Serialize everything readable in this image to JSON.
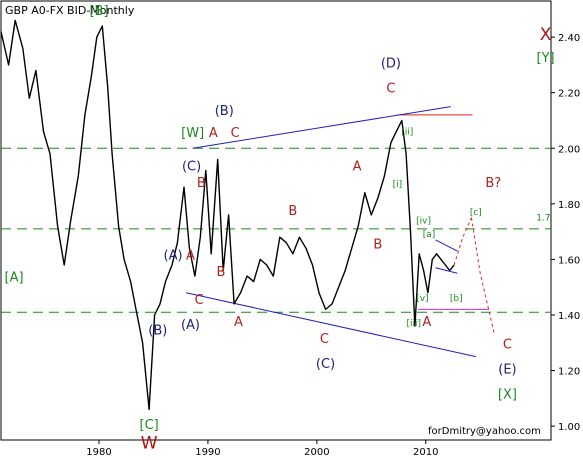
{
  "chart_data": {
    "type": "line",
    "title": "GBP A0-FX BID-Monthly",
    "watermark": "forDmitry@yahoo.com",
    "x_ticks": [
      1980,
      1990,
      2000,
      2010
    ],
    "y_ticks": [
      "1.00",
      "1.20",
      "1.40",
      "1.60",
      "1.80",
      "2.00",
      "2.20",
      "2.40"
    ],
    "xlim": [
      1971,
      2021.5
    ],
    "ylim": [
      0.95,
      2.53
    ],
    "grid": false,
    "series": [
      {
        "x": [
          1971.0,
          1971.7,
          1972.3,
          1973.0,
          1973.6,
          1974.2,
          1974.9,
          1975.5,
          1976.2,
          1976.8,
          1977.4,
          1978.1,
          1978.7,
          1979.3,
          1979.8,
          1980.3,
          1980.8,
          1981.2,
          1981.8,
          1982.3,
          1982.9,
          1983.4,
          1984.0,
          1984.6,
          1985.1,
          1985.6,
          1986.1,
          1986.7,
          1987.2,
          1987.8,
          1988.3,
          1988.8,
          1989.3,
          1989.8,
          1990.3,
          1990.9,
          1991.4,
          1991.9,
          1992.4,
          1993.0,
          1993.6,
          1994.2,
          1994.8,
          1995.4,
          1996.0,
          1996.6,
          1997.2,
          1997.8,
          1998.4,
          1999.0,
          1999.6,
          2000.2,
          2000.8,
          2001.4,
          2002.0,
          2002.6,
          2003.2,
          2003.8,
          2004.4,
          2005.0,
          2005.6,
          2006.2,
          2006.8,
          2007.3,
          2007.8,
          2008.2,
          2008.6,
          2009.0,
          2009.4,
          2009.8,
          2010.2,
          2010.6,
          2011.0,
          2011.4,
          2011.8,
          2012.2,
          2012.6
        ],
        "y": [
          2.42,
          2.3,
          2.46,
          2.36,
          2.18,
          2.28,
          2.06,
          1.98,
          1.72,
          1.58,
          1.74,
          1.9,
          2.12,
          2.26,
          2.4,
          2.44,
          2.22,
          1.98,
          1.72,
          1.6,
          1.52,
          1.42,
          1.3,
          1.06,
          1.4,
          1.44,
          1.52,
          1.58,
          1.66,
          1.86,
          1.64,
          1.54,
          1.68,
          1.92,
          1.62,
          1.96,
          1.56,
          1.76,
          1.44,
          1.48,
          1.54,
          1.52,
          1.6,
          1.58,
          1.54,
          1.68,
          1.66,
          1.62,
          1.68,
          1.64,
          1.58,
          1.48,
          1.42,
          1.44,
          1.5,
          1.56,
          1.64,
          1.72,
          1.84,
          1.76,
          1.82,
          1.9,
          2.02,
          2.06,
          2.1,
          1.98,
          1.7,
          1.36,
          1.62,
          1.56,
          1.48,
          1.6,
          1.62,
          1.6,
          1.58,
          1.56,
          1.58
        ]
      }
    ],
    "horizontal_levels": [
      {
        "y": 2.0,
        "color": "#1a8a1a",
        "style": "dashed"
      },
      {
        "y": 1.71,
        "color": "#1a8a1a",
        "style": "dashed",
        "label": "1.7"
      },
      {
        "y": 1.41,
        "color": "#1a8a1a",
        "style": "dashed"
      },
      {
        "y": 2.12,
        "x_from": 2007.4,
        "x_to": 2014.3,
        "color": "#e02020",
        "style": "solid"
      },
      {
        "y": 1.42,
        "x_from": 2009.3,
        "x_to": 2015.8,
        "color": "#e020e0",
        "style": "solid"
      }
    ],
    "trendlines": [
      {
        "x1": 1988.6,
        "y1": 2.0,
        "x2": 2012.3,
        "y2": 2.15,
        "color": "#2020c0"
      },
      {
        "x1": 1988.0,
        "y1": 1.48,
        "x2": 2014.6,
        "y2": 1.25,
        "color": "#2020c0"
      },
      {
        "x1": 2010.9,
        "y1": 1.67,
        "x2": 2012.9,
        "y2": 1.63,
        "color": "#2020c0"
      },
      {
        "x1": 2010.9,
        "y1": 1.57,
        "x2": 2012.9,
        "y2": 1.55,
        "color": "#2020c0"
      }
    ],
    "projections": [
      {
        "x": [
          2012.6,
          2013.4,
          2014.2
        ],
        "y": [
          1.58,
          1.68,
          1.75
        ],
        "color": "#e02020"
      },
      {
        "x": [
          2014.2,
          2015.0,
          2016.3
        ],
        "y": [
          1.75,
          1.55,
          1.33
        ],
        "color": "#e02020"
      }
    ],
    "annotations": [
      {
        "text": "[B]",
        "x": 1980.0,
        "y": 2.48,
        "color": "#1a8a1a"
      },
      {
        "text": "[A]",
        "x": 1972.2,
        "y": 1.52,
        "color": "#1a8a1a"
      },
      {
        "text": "[C]",
        "x": 1984.6,
        "y": 0.99,
        "color": "#1a8a1a"
      },
      {
        "text": "W",
        "x": 1984.6,
        "y": 0.92,
        "color": "#b01010"
      },
      {
        "text": "[W]",
        "x": 1988.6,
        "y": 2.04,
        "color": "#1a8a1a"
      },
      {
        "text": "(B)",
        "x": 1991.5,
        "y": 2.12,
        "color": "#20207a"
      },
      {
        "text": "A",
        "x": 1990.5,
        "y": 2.04,
        "color": "#b02020"
      },
      {
        "text": "C",
        "x": 1992.5,
        "y": 2.04,
        "color": "#b02020"
      },
      {
        "text": "(C)",
        "x": 1988.5,
        "y": 1.92,
        "color": "#20207a"
      },
      {
        "text": "B",
        "x": 1989.4,
        "y": 1.86,
        "color": "#b02020"
      },
      {
        "text": "(A)",
        "x": 1986.8,
        "y": 1.6,
        "color": "#20207a"
      },
      {
        "text": "A",
        "x": 1988.4,
        "y": 1.6,
        "color": "#b02020"
      },
      {
        "text": "B",
        "x": 1991.2,
        "y": 1.54,
        "color": "#b02020"
      },
      {
        "text": "C",
        "x": 1989.2,
        "y": 1.44,
        "color": "#b02020"
      },
      {
        "text": "(A)",
        "x": 1988.4,
        "y": 1.35,
        "color": "#20207a"
      },
      {
        "text": "(B)",
        "x": 1985.4,
        "y": 1.33,
        "color": "#20207a"
      },
      {
        "text": "A",
        "x": 1992.8,
        "y": 1.36,
        "color": "#b02020"
      },
      {
        "text": "B",
        "x": 1997.8,
        "y": 1.76,
        "color": "#b02020"
      },
      {
        "text": "C",
        "x": 2000.7,
        "y": 1.3,
        "color": "#b02020"
      },
      {
        "text": "(C)",
        "x": 2000.8,
        "y": 1.21,
        "color": "#20207a"
      },
      {
        "text": "A",
        "x": 2003.7,
        "y": 1.92,
        "color": "#b02020"
      },
      {
        "text": "B",
        "x": 2005.6,
        "y": 1.64,
        "color": "#b02020"
      },
      {
        "text": "(D)",
        "x": 2006.8,
        "y": 2.29,
        "color": "#20207a"
      },
      {
        "text": "C",
        "x": 2006.8,
        "y": 2.2,
        "color": "#b02020"
      },
      {
        "text": "[ii]",
        "x": 2008.3,
        "y": 2.05,
        "color": "#1a8a1a",
        "small": true
      },
      {
        "text": "[i]",
        "x": 2007.4,
        "y": 1.86,
        "color": "#1a8a1a",
        "small": true
      },
      {
        "text": "[iv]",
        "x": 2009.8,
        "y": 1.73,
        "color": "#1a8a1a",
        "small": true
      },
      {
        "text": "[a]",
        "x": 2010.3,
        "y": 1.68,
        "color": "#1a8a1a",
        "small": true
      },
      {
        "text": "[v]",
        "x": 2009.7,
        "y": 1.45,
        "color": "#1a8a1a",
        "small": true
      },
      {
        "text": "[iii]",
        "x": 2008.9,
        "y": 1.36,
        "color": "#1a8a1a",
        "small": true
      },
      {
        "text": "A",
        "x": 2010.1,
        "y": 1.36,
        "color": "#b02020"
      },
      {
        "text": "[b]",
        "x": 2012.8,
        "y": 1.45,
        "color": "#1a8a1a",
        "small": true
      },
      {
        "text": "[c]",
        "x": 2014.6,
        "y": 1.76,
        "color": "#1a8a1a",
        "small": true
      },
      {
        "text": "B?",
        "x": 2016.2,
        "y": 1.86,
        "color": "#b02020"
      },
      {
        "text": "1.7",
        "x": 2020.8,
        "y": 1.74,
        "color": "#1a8a1a",
        "small": true
      },
      {
        "text": "C",
        "x": 2017.5,
        "y": 1.28,
        "color": "#b02020"
      },
      {
        "text": "(E)",
        "x": 2017.5,
        "y": 1.19,
        "color": "#20207a"
      },
      {
        "text": "[X]",
        "x": 2017.5,
        "y": 1.1,
        "color": "#1a8a1a"
      },
      {
        "text": "X",
        "x": 2021.0,
        "y": 2.39,
        "color": "#b01010"
      },
      {
        "text": "[Y]",
        "x": 2021.0,
        "y": 2.31,
        "color": "#1a8a1a"
      }
    ]
  }
}
